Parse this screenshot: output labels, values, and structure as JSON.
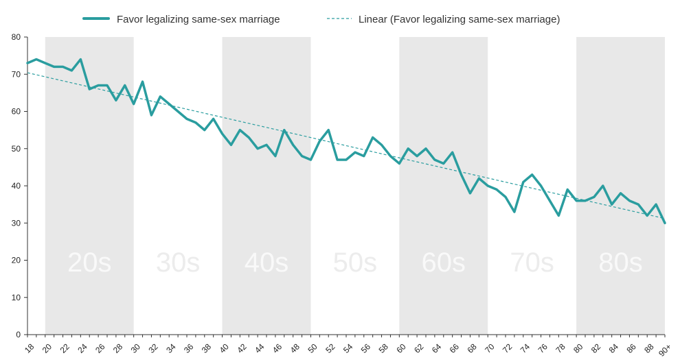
{
  "chart_data": {
    "type": "line",
    "title": "",
    "xlabel": "",
    "ylabel": "",
    "ylim": [
      0,
      80
    ],
    "yticks": [
      0,
      10,
      20,
      30,
      40,
      50,
      60,
      70,
      80
    ],
    "x": [
      18,
      19,
      20,
      21,
      22,
      23,
      24,
      25,
      26,
      27,
      28,
      29,
      30,
      31,
      32,
      33,
      34,
      35,
      36,
      37,
      38,
      39,
      40,
      41,
      42,
      43,
      44,
      45,
      46,
      47,
      48,
      49,
      50,
      51,
      52,
      53,
      54,
      55,
      56,
      57,
      58,
      59,
      60,
      61,
      62,
      63,
      64,
      65,
      66,
      67,
      68,
      69,
      70,
      71,
      72,
      73,
      74,
      75,
      76,
      77,
      78,
      79,
      80,
      81,
      82,
      83,
      84,
      85,
      86,
      87,
      88,
      89,
      "90+"
    ],
    "xtick_labels": [
      "18",
      "20",
      "22",
      "24",
      "26",
      "28",
      "30",
      "32",
      "34",
      "36",
      "38",
      "40",
      "42",
      "44",
      "46",
      "48",
      "50",
      "52",
      "54",
      "56",
      "58",
      "60",
      "62",
      "64",
      "66",
      "68",
      "70",
      "72",
      "74",
      "76",
      "78",
      "80",
      "82",
      "84",
      "86",
      "88",
      "90+"
    ],
    "series": [
      {
        "name": "Favor legalizing same-sex marriage",
        "color": "#2a9d9f",
        "values": [
          73,
          74,
          73,
          72,
          72,
          71,
          74,
          66,
          67,
          67,
          63,
          67,
          62,
          68,
          59,
          64,
          62,
          60,
          58,
          57,
          55,
          58,
          54,
          51,
          55,
          53,
          50,
          51,
          48,
          55,
          51,
          48,
          47,
          52,
          55,
          47,
          47,
          49,
          48,
          53,
          51,
          48,
          46,
          50,
          48,
          50,
          47,
          46,
          49,
          43,
          38,
          42,
          40,
          39,
          37,
          33,
          41,
          43,
          40,
          36,
          32,
          39,
          36,
          36,
          37,
          40,
          35,
          38,
          36,
          35,
          32,
          35,
          30
        ]
      }
    ],
    "trendline": {
      "name": "Linear (Favor legalizing same-sex marriage)",
      "start": 70.4,
      "end": 31.2,
      "style": "dashed",
      "color": "#2a9d9f"
    },
    "bands": [
      {
        "label": "20s",
        "from": 20,
        "to": 30,
        "shaded": true
      },
      {
        "label": "30s",
        "from": 30,
        "to": 40,
        "shaded": false
      },
      {
        "label": "40s",
        "from": 40,
        "to": 50,
        "shaded": true
      },
      {
        "label": "50s",
        "from": 50,
        "to": 60,
        "shaded": false
      },
      {
        "label": "60s",
        "from": 60,
        "to": 70,
        "shaded": true
      },
      {
        "label": "70s",
        "from": 70,
        "to": 80,
        "shaded": false
      },
      {
        "label": "80s",
        "from": 80,
        "to": 90,
        "shaded": true
      }
    ],
    "band_color": "#e8e8e8",
    "legend_position": "top"
  }
}
